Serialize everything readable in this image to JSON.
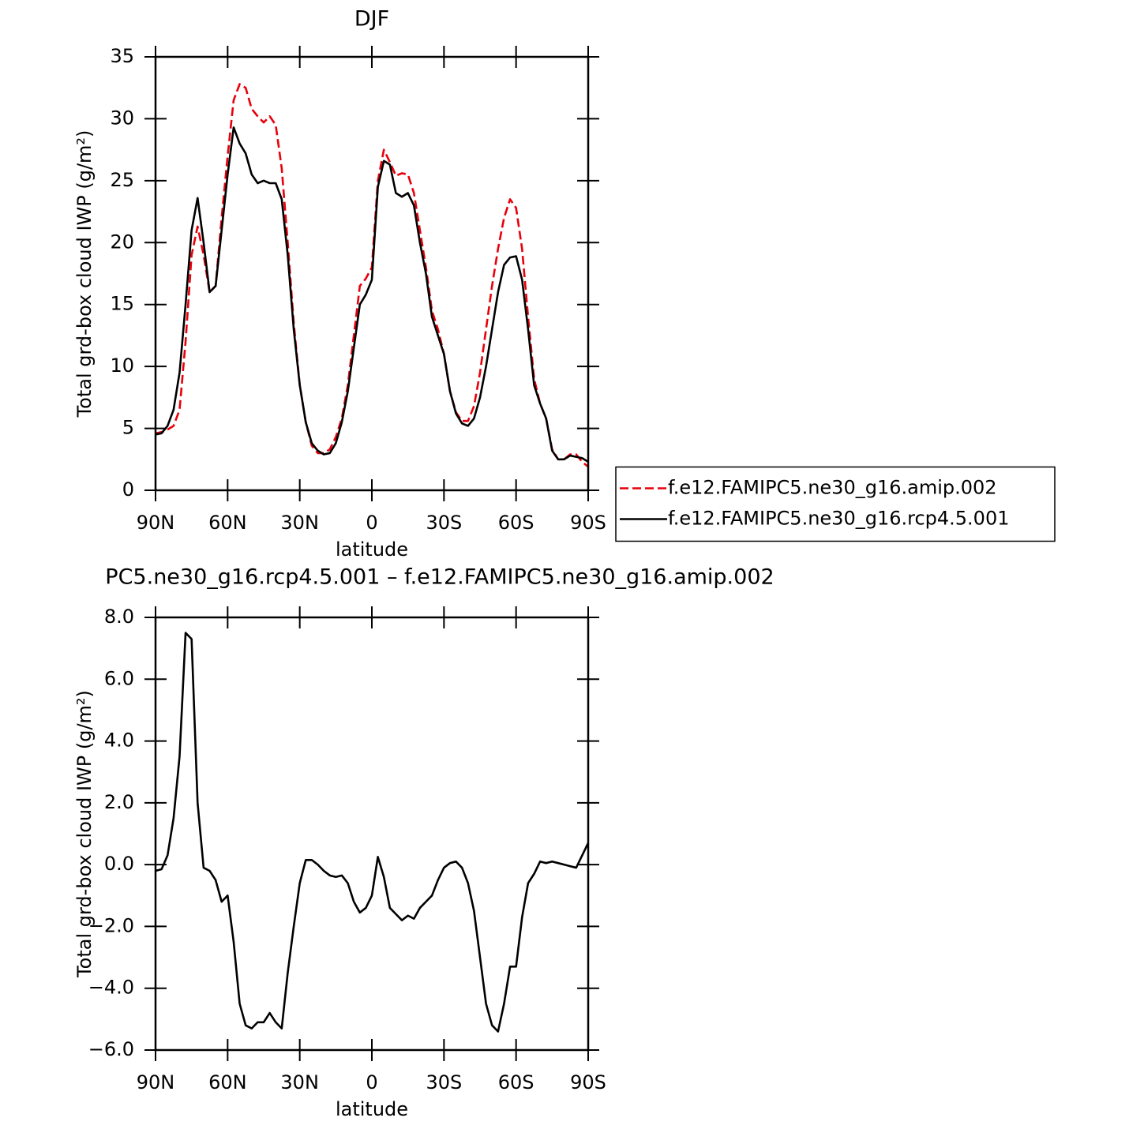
{
  "chart_data": [
    {
      "type": "line",
      "title": "DJF",
      "xlabel": "latitude",
      "ylabel": "Total grd-box cloud IWP (g/m²)",
      "x": [
        90,
        87.5,
        85,
        82.5,
        80,
        77.5,
        75,
        72.5,
        70,
        67.5,
        65,
        62.5,
        60,
        57.5,
        55,
        52.5,
        50,
        47.5,
        45,
        42.5,
        40,
        37.5,
        35,
        32.5,
        30,
        27.5,
        25,
        22.5,
        20,
        17.5,
        15,
        12.5,
        10,
        7.5,
        5,
        2.5,
        0,
        -2.5,
        -5,
        -7.5,
        -10,
        -12.5,
        -15,
        -17.5,
        -20,
        -22.5,
        -25,
        -27.5,
        -30,
        -32.5,
        -35,
        -37.5,
        -40,
        -42.5,
        -45,
        -47.5,
        -50,
        -52.5,
        -55,
        -57.5,
        -60,
        -62.5,
        -65,
        -67.5,
        -70,
        -72.5,
        -75,
        -77.5,
        -80,
        -82.5,
        -85,
        -87.5,
        -90
      ],
      "xlim": [
        90,
        -90
      ],
      "xticks": [
        {
          "value": 90,
          "label": "90N"
        },
        {
          "value": 60,
          "label": "60N"
        },
        {
          "value": 30,
          "label": "30N"
        },
        0,
        {
          "value": -30,
          "label": "30S"
        },
        {
          "value": -60,
          "label": "60S"
        },
        {
          "value": -90,
          "label": "90S"
        }
      ],
      "ylim": [
        0,
        35
      ],
      "yticks": [
        0,
        5,
        10,
        15,
        20,
        25,
        30,
        35
      ],
      "legend": "right",
      "series": [
        {
          "name": "f.e12.FAMIPC5.ne30_g16.amip.002",
          "color": "#e8000b",
          "linestyle": "dashed",
          "values": [
            4.6,
            4.7,
            4.9,
            5.2,
            6.5,
            12,
            19,
            21.3,
            19,
            16,
            16.5,
            22,
            27,
            31.5,
            32.8,
            32.5,
            30.8,
            30.2,
            29.7,
            30.2,
            29.5,
            26,
            20,
            13.5,
            8.5,
            5.5,
            3.6,
            3.0,
            3.0,
            3.3,
            4.3,
            5.8,
            8.5,
            12.5,
            16.5,
            17.1,
            18,
            25,
            27.5,
            26.5,
            25.4,
            25.6,
            25.5,
            24,
            21,
            18,
            14.5,
            13,
            11,
            8,
            6.3,
            5.6,
            5.6,
            6.8,
            9.5,
            13,
            16.5,
            19.5,
            22,
            23.5,
            22.8,
            19.5,
            14,
            9,
            7,
            5.8,
            3.3,
            2.5,
            2.5,
            2.9,
            2.9,
            2.3,
            1.9
          ]
        },
        {
          "name": "f.e12.FAMIPC5.ne30_g16.rcp4.5.001",
          "color": "#000000",
          "linestyle": "solid",
          "values": [
            4.5,
            4.6,
            5.2,
            6.5,
            9.5,
            15,
            21,
            23.6,
            20,
            16,
            16.5,
            21,
            25.5,
            29.3,
            28,
            27.2,
            25.5,
            24.8,
            25.0,
            24.8,
            24.8,
            23.5,
            19,
            13,
            8.5,
            5.5,
            3.8,
            3.2,
            2.9,
            3.0,
            3.8,
            5.5,
            8.0,
            11.5,
            15,
            15.8,
            17,
            24.5,
            26.6,
            26.3,
            24,
            23.7,
            24,
            23,
            20,
            17.5,
            14,
            12.5,
            11,
            8,
            6.2,
            5.4,
            5.2,
            5.8,
            7.5,
            10,
            13,
            16,
            18.2,
            18.8,
            18.9,
            17,
            13,
            8.5,
            7,
            5.8,
            3.2,
            2.5,
            2.5,
            2.8,
            2.7,
            2.6,
            2.3
          ]
        }
      ]
    },
    {
      "type": "line",
      "title": "PC5.ne30_g16.rcp4.5.001 – f.e12.FAMIPC5.ne30_g16.amip.002",
      "xlabel": "latitude",
      "ylabel": "Total grd-box cloud IWP (g/m²)",
      "x": [
        90,
        87.5,
        85,
        82.5,
        80,
        77.5,
        75,
        72.5,
        70,
        67.5,
        65,
        62.5,
        60,
        57.5,
        55,
        52.5,
        50,
        47.5,
        45,
        42.5,
        40,
        37.5,
        35,
        32.5,
        30,
        27.5,
        25,
        22.5,
        20,
        17.5,
        15,
        12.5,
        10,
        7.5,
        5,
        2.5,
        0,
        -2.5,
        -5,
        -7.5,
        -10,
        -12.5,
        -15,
        -17.5,
        -20,
        -22.5,
        -25,
        -27.5,
        -30,
        -32.5,
        -35,
        -37.5,
        -40,
        -42.5,
        -45,
        -47.5,
        -50,
        -52.5,
        -55,
        -57.5,
        -60,
        -62.5,
        -65,
        -67.5,
        -70,
        -72.5,
        -75,
        -77.5,
        -80,
        -82.5,
        -85,
        -87.5,
        -90
      ],
      "xlim": [
        90,
        -90
      ],
      "xticks": [
        {
          "value": 90,
          "label": "90N"
        },
        {
          "value": 60,
          "label": "60N"
        },
        {
          "value": 30,
          "label": "30N"
        },
        0,
        {
          "value": -30,
          "label": "30S"
        },
        {
          "value": -60,
          "label": "60S"
        },
        {
          "value": -90,
          "label": "90S"
        }
      ],
      "ylim": [
        -6,
        8
      ],
      "yticks": [
        {
          "value": -6,
          "label": "−6.0"
        },
        {
          "value": -4,
          "label": "−4.0"
        },
        {
          "value": -2,
          "label": "−2.0"
        },
        {
          "value": 0,
          "label": "0.0"
        },
        {
          "value": 2,
          "label": "2.0"
        },
        {
          "value": 4,
          "label": "4.0"
        },
        {
          "value": 6,
          "label": "6.0"
        },
        {
          "value": 8,
          "label": "8.0"
        }
      ],
      "color": "#000000",
      "values": [
        -0.2,
        -0.15,
        0.3,
        1.5,
        3.5,
        7.5,
        7.3,
        2.0,
        -0.1,
        -0.2,
        -0.5,
        -1.2,
        -1.0,
        -2.5,
        -4.5,
        -5.2,
        -5.3,
        -5.1,
        -5.1,
        -4.8,
        -5.1,
        -5.3,
        -3.5,
        -2.0,
        -0.6,
        0.15,
        0.15,
        0.0,
        -0.2,
        -0.35,
        -0.4,
        -0.35,
        -0.6,
        -1.2,
        -1.55,
        -1.4,
        -1.0,
        0.25,
        -0.4,
        -1.4,
        -1.6,
        -1.8,
        -1.65,
        -1.75,
        -1.4,
        -1.2,
        -1.0,
        -0.5,
        -0.1,
        0.05,
        0.1,
        -0.1,
        -0.6,
        -1.5,
        -3.0,
        -4.5,
        -5.2,
        -5.4,
        -4.5,
        -3.3,
        -3.3,
        -1.7,
        -0.6,
        -0.3,
        0.1,
        0.05,
        0.1,
        0.05,
        0.0,
        -0.05,
        -0.1,
        0.3,
        0.7
      ]
    }
  ]
}
